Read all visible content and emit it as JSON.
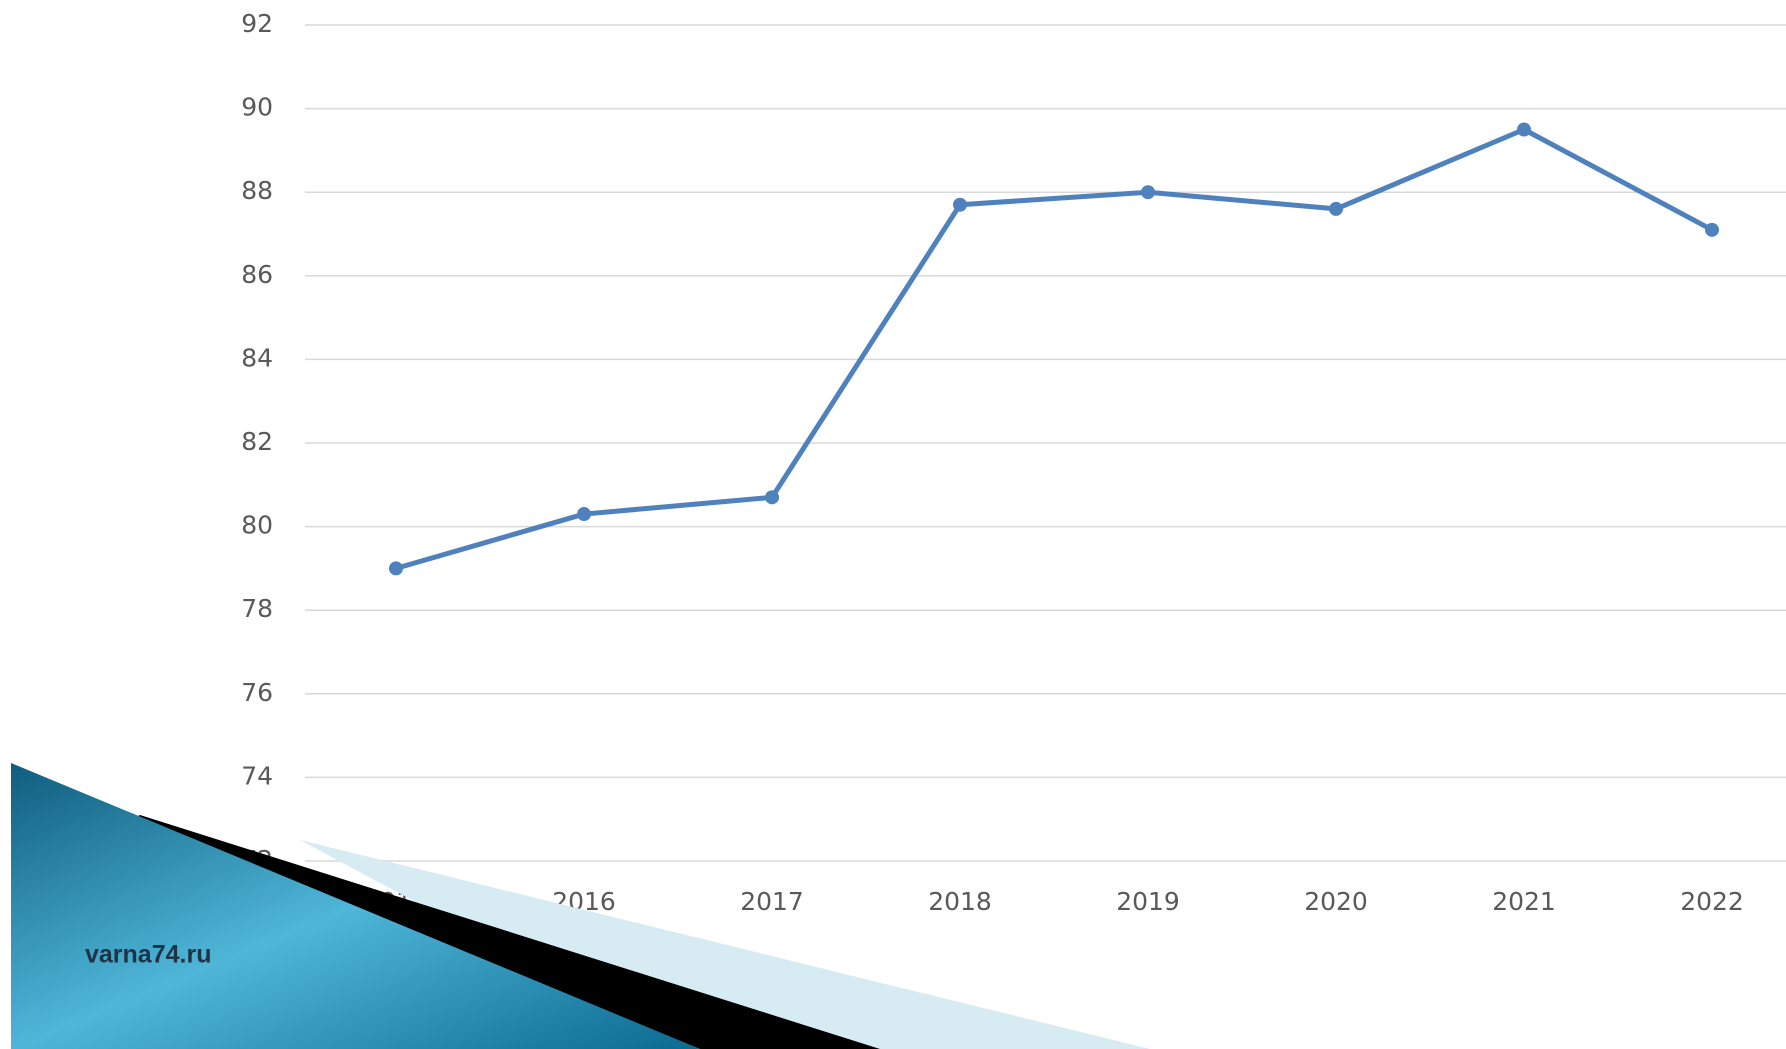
{
  "chart_data": {
    "type": "line",
    "categories": [
      "2015",
      "2016",
      "2017",
      "2018",
      "2019",
      "2020",
      "2021",
      "2022"
    ],
    "series": [
      {
        "color": "#4f81bd",
        "values": [
          79.0,
          80.3,
          80.7,
          87.7,
          88.0,
          87.6,
          89.5,
          87.1
        ]
      }
    ],
    "ylim": [
      72,
      92
    ],
    "yticks": [
      72,
      74,
      76,
      78,
      80,
      82,
      84,
      86,
      88,
      90,
      92
    ],
    "grid": true
  },
  "watermark": "varna74.ru"
}
